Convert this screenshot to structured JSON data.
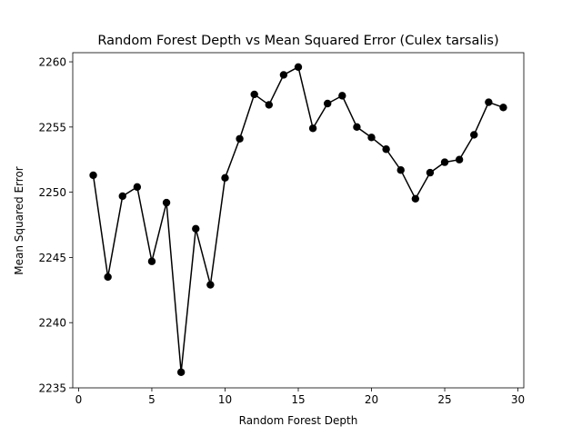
{
  "chart_data": {
    "type": "line",
    "title": "Random Forest Depth vs Mean Squared Error (Culex tarsalis)",
    "xlabel": "Random Forest Depth",
    "ylabel": "Mean Squared Error",
    "xlim": [
      -0.4,
      30.4
    ],
    "ylim": [
      2235,
      2260.7
    ],
    "xticks": [
      0,
      5,
      10,
      15,
      20,
      25,
      30
    ],
    "yticks": [
      2235,
      2240,
      2245,
      2250,
      2255,
      2260
    ],
    "grid": false,
    "legend": "none",
    "marker": "circle",
    "color": "#000000",
    "series": [
      {
        "x": [
          1,
          2,
          3,
          4,
          5,
          6,
          7,
          8,
          9,
          10,
          11,
          12,
          13,
          14,
          15,
          16,
          17,
          18,
          19,
          20,
          21,
          22,
          23,
          24,
          25,
          26,
          27,
          28,
          29
        ],
        "values": [
          2251.3,
          2243.5,
          2249.7,
          2250.4,
          2244.7,
          2249.2,
          2236.2,
          2247.2,
          2242.9,
          2251.1,
          2254.1,
          2257.5,
          2256.7,
          2259.0,
          2259.6,
          2254.9,
          2256.8,
          2257.4,
          2255.0,
          2254.2,
          2253.3,
          2251.7,
          2249.5,
          2251.5,
          2252.3,
          2252.5,
          2254.4,
          2256.9,
          2256.5
        ]
      }
    ]
  }
}
